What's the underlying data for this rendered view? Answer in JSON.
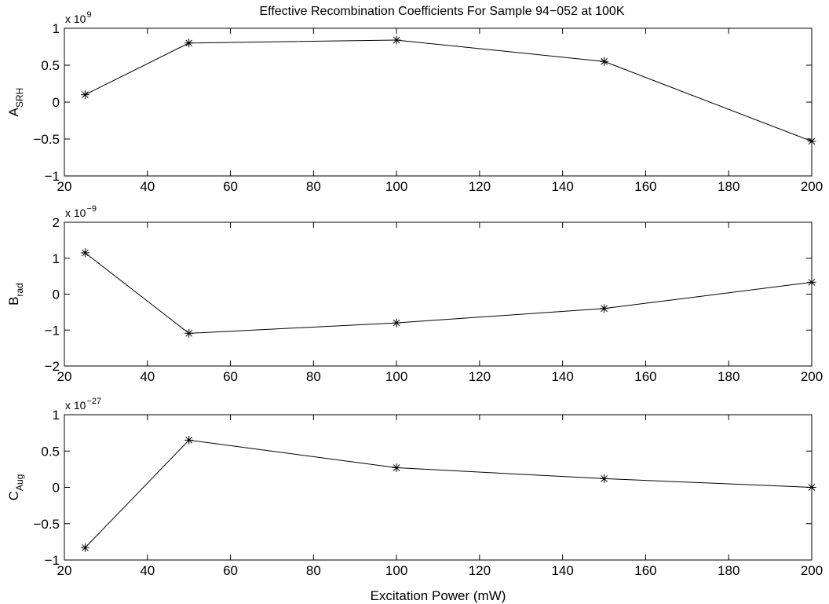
{
  "title": "Effective Recombination Coefficients For Sample 94−052 at 100K",
  "xlabel": "Excitation Power (mW)",
  "chart_data": [
    {
      "type": "line",
      "title": "Effective Recombination Coefficients For Sample 94−052 at 100K",
      "ylabel_main": "A",
      "ylabel_sub": "SRH",
      "multiplier_base": "x 10",
      "multiplier_exp": "9",
      "xlim": [
        20,
        200
      ],
      "ylim": [
        -1,
        1
      ],
      "xticks": [
        "20",
        "40",
        "60",
        "80",
        "100",
        "120",
        "140",
        "160",
        "180",
        "200"
      ],
      "yticks": [
        "−1",
        "−0.5",
        "0",
        "0.5",
        "1"
      ],
      "ytick_values": [
        -1,
        -0.5,
        0,
        0.5,
        1
      ],
      "x": [
        25,
        50,
        100,
        150,
        200
      ],
      "y": [
        0.1,
        0.8,
        0.84,
        0.55,
        -0.53
      ],
      "marker": "asterisk",
      "color": "#000000"
    },
    {
      "type": "line",
      "ylabel_main": "B",
      "ylabel_sub": "rad",
      "multiplier_base": "x 10",
      "multiplier_exp": "−9",
      "xlim": [
        20,
        200
      ],
      "ylim": [
        -2,
        2
      ],
      "xticks": [
        "20",
        "40",
        "60",
        "80",
        "100",
        "120",
        "140",
        "160",
        "180",
        "200"
      ],
      "yticks": [
        "−2",
        "−1",
        "0",
        "1",
        "2"
      ],
      "ytick_values": [
        -2,
        -1,
        0,
        1,
        2
      ],
      "x": [
        25,
        50,
        100,
        150,
        200
      ],
      "y": [
        1.15,
        -1.09,
        -0.8,
        -0.4,
        0.33
      ],
      "marker": "asterisk",
      "color": "#000000"
    },
    {
      "type": "line",
      "ylabel_main": "C",
      "ylabel_sub": "Aug",
      "multiplier_base": "x 10",
      "multiplier_exp": "−27",
      "xlim": [
        20,
        200
      ],
      "ylim": [
        -1,
        1
      ],
      "xticks": [
        "20",
        "40",
        "60",
        "80",
        "100",
        "120",
        "140",
        "160",
        "180",
        "200"
      ],
      "yticks": [
        "−1",
        "−0.5",
        "0",
        "0.5",
        "1"
      ],
      "ytick_values": [
        -1,
        -0.5,
        0,
        0.5,
        1
      ],
      "x": [
        25,
        50,
        100,
        150,
        200
      ],
      "y": [
        -0.83,
        0.65,
        0.27,
        0.12,
        0.0
      ],
      "marker": "asterisk",
      "color": "#000000"
    }
  ]
}
